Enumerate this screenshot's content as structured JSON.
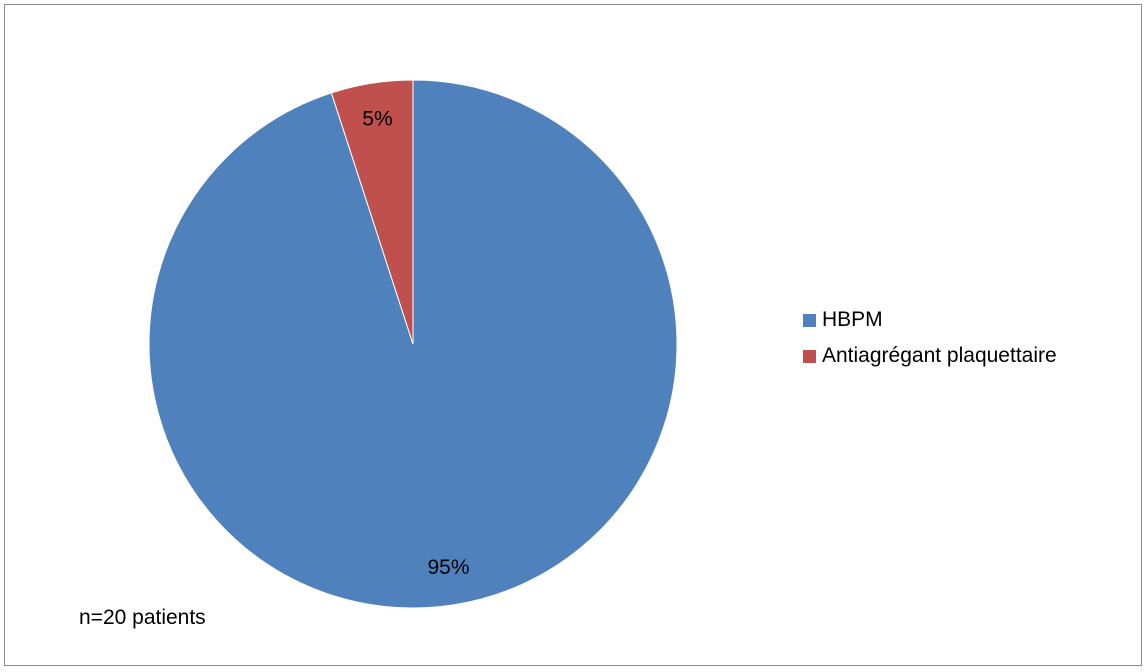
{
  "chart_data": {
    "type": "pie",
    "title": "",
    "slices": [
      {
        "name": "HBPM",
        "value": 95,
        "label": "95%",
        "color": "#4f81bd"
      },
      {
        "name": "Antiagrégant plaquettaire",
        "value": 5,
        "label": "5%",
        "color": "#c0504d"
      }
    ],
    "legend_placement": "right",
    "note": "n=20 patients"
  }
}
